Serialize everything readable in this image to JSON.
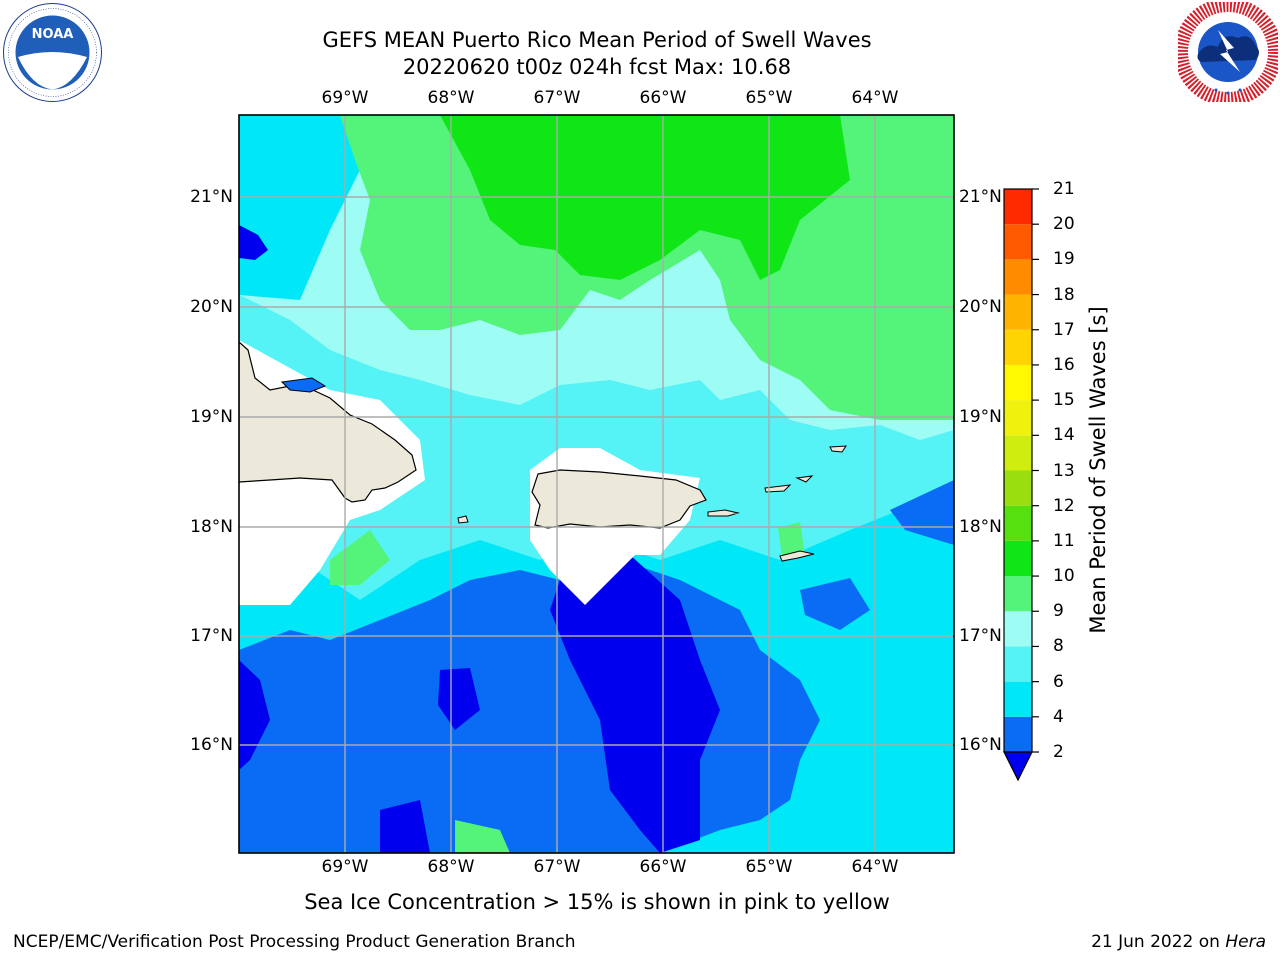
{
  "title": {
    "line1": "GEFS MEAN Puerto Rico Mean Period of Swell Waves",
    "line2": "20220620 t00z 024h fcst   Max: 10.68"
  },
  "map": {
    "lon_labels": [
      "69°W",
      "68°W",
      "67°W",
      "66°W",
      "65°W",
      "64°W"
    ],
    "lat_labels": [
      "21°N",
      "20°N",
      "19°N",
      "18°N",
      "17°N",
      "16°N"
    ],
    "gridlines": true,
    "landmasses": [
      "Hispaniola",
      "Puerto Rico",
      "Virgin Islands",
      "St. Croix",
      "Mona Island"
    ]
  },
  "colorbar": {
    "label": "Mean Period of Swell Waves [s]",
    "ticks": [
      "2",
      "4",
      "6",
      "8",
      "9",
      "10",
      "11",
      "12",
      "13",
      "14",
      "15",
      "16",
      "17",
      "18",
      "19",
      "20",
      "21"
    ],
    "colors": [
      "#0000ee",
      "#0a6cf5",
      "#00e8f8",
      "#55f2f6",
      "#9dfcf4",
      "#54f47a",
      "#10e616",
      "#56e010",
      "#9ade10",
      "#cfed0e",
      "#eef20c",
      "#fff800",
      "#ffd400",
      "#ffb400",
      "#ff8c00",
      "#ff5a00",
      "#ff2a00",
      "#ff0000"
    ]
  },
  "footer": {
    "note": "Sea Ice Concentration > 15% is shown in pink to yellow",
    "credit": "NCEP/EMC/Verification Post Processing Product Generation Branch",
    "date_prefix": "21 Jun 2022 on ",
    "host": "Hera"
  },
  "logos": {
    "left": "noaa-logo",
    "right": "nws-logo"
  }
}
